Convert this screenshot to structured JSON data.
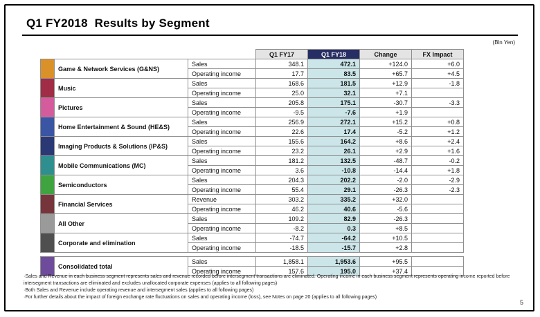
{
  "slide": {
    "title": "Q1 FY2018  Results by Segment",
    "unit_note": "(Bln Yen)",
    "page_number": "5"
  },
  "table": {
    "column_headers": [
      "Q1 FY17",
      "Q1 FY18",
      "Change",
      "FX Impact"
    ],
    "highlight_column": "Q1 FY18",
    "colors": {
      "highlight_header_bg": "#272e63",
      "highlight_cell_bg": "#cbe5e8"
    },
    "segments": [
      {
        "name": "Game & Network Services (G&NS)",
        "color": "#db912a",
        "rows": [
          {
            "label": "Sales",
            "values": [
              "348.1",
              "472.1",
              "+124.0",
              "+6.0"
            ]
          },
          {
            "label": "Operating income",
            "values": [
              "17.7",
              "83.5",
              "+65.7",
              "+4.5"
            ]
          }
        ]
      },
      {
        "name": "Music",
        "color": "#a12c45",
        "rows": [
          {
            "label": "Sales",
            "values": [
              "168.6",
              "181.5",
              "+12.9",
              "-1.8"
            ]
          },
          {
            "label": "Operating income",
            "values": [
              "25.0",
              "32.1",
              "+7.1",
              ""
            ]
          }
        ]
      },
      {
        "name": "Pictures",
        "color": "#d55c9c",
        "rows": [
          {
            "label": "Sales",
            "values": [
              "205.8",
              "175.1",
              "-30.7",
              "-3.3"
            ]
          },
          {
            "label": "Operating income",
            "values": [
              "-9.5",
              "-7.6",
              "+1.9",
              ""
            ]
          }
        ]
      },
      {
        "name": "Home Entertainment & Sound (HE&S)",
        "color": "#3b55a5",
        "rows": [
          {
            "label": "Sales",
            "values": [
              "256.9",
              "272.1",
              "+15.2",
              "+0.8"
            ]
          },
          {
            "label": "Operating income",
            "values": [
              "22.6",
              "17.4",
              "-5.2",
              "+1.2"
            ]
          }
        ]
      },
      {
        "name": "Imaging Products & Solutions (IP&S)",
        "color": "#2a3875",
        "rows": [
          {
            "label": "Sales",
            "values": [
              "155.6",
              "164.2",
              "+8.6",
              "+2.4"
            ]
          },
          {
            "label": "Operating income",
            "values": [
              "23.2",
              "26.1",
              "+2.9",
              "+1.6"
            ]
          }
        ]
      },
      {
        "name": "Mobile Communications (MC)",
        "color": "#2f8f8f",
        "rows": [
          {
            "label": "Sales",
            "values": [
              "181.2",
              "132.5",
              "-48.7",
              "-0.2"
            ]
          },
          {
            "label": "Operating income",
            "values": [
              "3.6",
              "-10.8",
              "-14.4",
              "+1.8"
            ]
          }
        ]
      },
      {
        "name": "Semiconductors",
        "color": "#3fa43f",
        "rows": [
          {
            "label": "Sales",
            "values": [
              "204.3",
              "202.2",
              "-2.0",
              "-2.9"
            ]
          },
          {
            "label": "Operating income",
            "values": [
              "55.4",
              "29.1",
              "-26.3",
              "-2.3"
            ]
          }
        ]
      },
      {
        "name": "Financial Services",
        "color": "#76343b",
        "rows": [
          {
            "label": "Revenue",
            "values": [
              "303.2",
              "335.2",
              "+32.0",
              ""
            ]
          },
          {
            "label": "Operating income",
            "values": [
              "46.2",
              "40.6",
              "-5.6",
              ""
            ]
          }
        ]
      },
      {
        "name": "All Other",
        "color": "#9a9a9a",
        "rows": [
          {
            "label": "Sales",
            "values": [
              "109.2",
              "82.9",
              "-26.3",
              ""
            ]
          },
          {
            "label": "Operating income",
            "values": [
              "-8.2",
              "0.3",
              "+8.5",
              ""
            ]
          }
        ]
      },
      {
        "name": "Corporate and elimination",
        "color": "#4f4f4f",
        "rows": [
          {
            "label": "Sales",
            "values": [
              "-74.7",
              "-64.2",
              "+10.5",
              ""
            ]
          },
          {
            "label": "Operating income",
            "values": [
              "-18.5",
              "-15.7",
              "+2.8",
              ""
            ]
          }
        ]
      }
    ],
    "total": {
      "name": "Consolidated total",
      "color": "#6f4c9b",
      "rows": [
        {
          "label": "Sales",
          "values": [
            "1,858.1",
            "1,953.6",
            "+95.5",
            ""
          ]
        },
        {
          "label": "Operating income",
          "values": [
            "157.6",
            "195.0",
            "+37.4",
            ""
          ]
        }
      ]
    }
  },
  "footnotes": [
    "Sales and Revenue in each business segment represents sales and revenue recorded before intersegment transactions are eliminated. Operating income in each business segment represents operating income reported before intersegment transactions are eliminated and excludes unallocated corporate expenses (applies to all following pages)",
    "Both Sales and Revenue include operating revenue and intersegment sales (applies to all following pages)",
    "For further details about the impact of foreign exchange rate fluctuations on sales and operating income (loss), see Notes on page 20 (applies to all following pages)"
  ]
}
